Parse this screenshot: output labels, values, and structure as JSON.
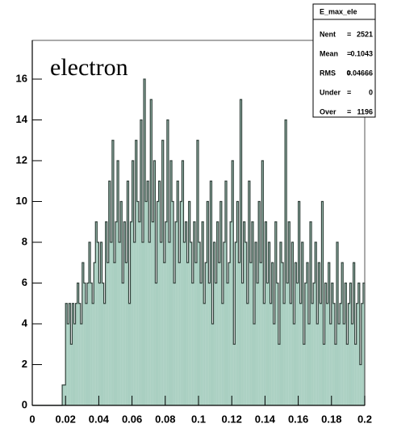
{
  "chart_data": {
    "type": "histogram",
    "annotation": "electron",
    "stats_title": "E_max_ele",
    "stats": [
      {
        "label": "Nent",
        "value": 2521
      },
      {
        "label": "Mean",
        "value": 0.1043
      },
      {
        "label": "RMS",
        "value": 0.04666
      },
      {
        "label": "Under",
        "value": 0
      },
      {
        "label": "Over",
        "value": 1196
      }
    ],
    "color": "#a9cfc1",
    "line_color": "#33423c",
    "xlim": [
      0,
      0.2
    ],
    "ylim": [
      0,
      17.9
    ],
    "xticks": [
      0,
      0.02,
      0.04,
      0.06,
      0.08,
      0.1,
      0.12,
      0.14,
      0.16,
      0.18,
      0.2
    ],
    "yticks": [
      0,
      2,
      4,
      6,
      8,
      10,
      12,
      14,
      16
    ],
    "bins": [
      0,
      0.001,
      0.002,
      0.003,
      0.004,
      0.005,
      0.006,
      0.007,
      0.008,
      0.009,
      0.01,
      0.011,
      0.012,
      0.013,
      0.014,
      0.015,
      0.016,
      0.017,
      0.018,
      0.019,
      0.02,
      0.021,
      0.022,
      0.023,
      0.024,
      0.025,
      0.026,
      0.027,
      0.028,
      0.029,
      0.03,
      0.031,
      0.032,
      0.033,
      0.034,
      0.035,
      0.036,
      0.037,
      0.038,
      0.039,
      0.04,
      0.041,
      0.042,
      0.043,
      0.044,
      0.045,
      0.046,
      0.047,
      0.048,
      0.049,
      0.05,
      0.051,
      0.052,
      0.053,
      0.054,
      0.055,
      0.056,
      0.057,
      0.058,
      0.059,
      0.06,
      0.061,
      0.062,
      0.063,
      0.064,
      0.065,
      0.066,
      0.067,
      0.068,
      0.069,
      0.07,
      0.071,
      0.072,
      0.073,
      0.074,
      0.075,
      0.076,
      0.077,
      0.078,
      0.079,
      0.08,
      0.081,
      0.082,
      0.083,
      0.084,
      0.085,
      0.086,
      0.087,
      0.088,
      0.089,
      0.09,
      0.091,
      0.092,
      0.093,
      0.094,
      0.095,
      0.096,
      0.097,
      0.098,
      0.099,
      0.1,
      0.101,
      0.102,
      0.103,
      0.104,
      0.105,
      0.106,
      0.107,
      0.108,
      0.109,
      0.11,
      0.111,
      0.112,
      0.113,
      0.114,
      0.115,
      0.116,
      0.117,
      0.118,
      0.119,
      0.12,
      0.121,
      0.122,
      0.123,
      0.124,
      0.125,
      0.126,
      0.127,
      0.128,
      0.129,
      0.13,
      0.131,
      0.132,
      0.133,
      0.134,
      0.135,
      0.136,
      0.137,
      0.138,
      0.139,
      0.14,
      0.141,
      0.142,
      0.143,
      0.144,
      0.145,
      0.146,
      0.147,
      0.148,
      0.149,
      0.15,
      0.151,
      0.152,
      0.153,
      0.154,
      0.155,
      0.156,
      0.157,
      0.158,
      0.159,
      0.16,
      0.161,
      0.162,
      0.163,
      0.164,
      0.165,
      0.166,
      0.167,
      0.168,
      0.169,
      0.17,
      0.171,
      0.172,
      0.173,
      0.174,
      0.175,
      0.176,
      0.177,
      0.178,
      0.179,
      0.18,
      0.181,
      0.182,
      0.183,
      0.184,
      0.185,
      0.186,
      0.187,
      0.188,
      0.189,
      0.19,
      0.191,
      0.192,
      0.193,
      0.194,
      0.195,
      0.196,
      0.197,
      0.198,
      0.199,
      0.2
    ],
    "values": [
      0,
      0,
      0,
      0,
      0,
      0,
      0,
      0,
      0,
      0,
      0,
      0,
      0,
      0,
      0,
      0,
      0,
      0,
      1,
      1,
      5,
      4,
      5,
      3,
      5,
      4,
      5,
      6,
      5,
      4,
      7,
      6,
      5,
      6,
      8,
      6,
      5,
      7,
      9,
      8,
      6,
      8,
      6,
      5,
      9,
      7,
      11,
      8,
      13,
      7,
      9,
      12,
      8,
      10,
      6,
      9,
      7,
      11,
      5,
      9,
      12,
      8,
      13,
      10,
      9,
      14,
      8,
      16,
      10,
      11,
      8,
      15,
      9,
      12,
      6,
      10,
      11,
      8,
      13,
      7,
      9,
      14,
      8,
      12,
      10,
      6,
      9,
      11,
      7,
      10,
      12,
      8,
      9,
      7,
      10,
      8,
      6,
      9,
      7,
      13,
      8,
      6,
      9,
      5,
      7,
      10,
      6,
      11,
      4,
      8,
      6,
      9,
      7,
      10,
      5,
      8,
      11,
      6,
      7,
      9,
      12,
      3,
      8,
      10,
      7,
      15,
      6,
      9,
      8,
      5,
      11,
      7,
      9,
      4,
      8,
      6,
      10,
      7,
      12,
      5,
      9,
      6,
      8,
      5,
      7,
      4,
      9,
      6,
      3,
      8,
      7,
      5,
      14,
      6,
      9,
      5,
      8,
      4,
      7,
      6,
      10,
      5,
      8,
      3,
      6,
      7,
      4,
      9,
      5,
      6,
      8,
      4,
      7,
      5,
      10,
      3,
      6,
      5,
      7,
      4,
      6,
      5,
      3,
      8,
      4,
      5,
      7,
      4,
      6,
      3,
      5,
      6,
      4,
      7,
      3,
      5,
      6,
      2,
      5,
      6
    ]
  }
}
